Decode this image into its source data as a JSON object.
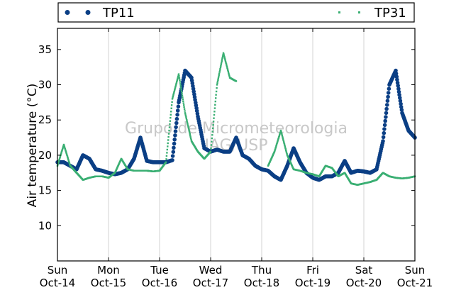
{
  "chart_data": {
    "type": "scatter",
    "ylabel": "Air temperature (°C)",
    "xlabel": "",
    "ylim": [
      5,
      38
    ],
    "xlim": [
      "2018-10-14 00:00",
      "2018-10-21 00:00"
    ],
    "y_ticks": [
      10,
      15,
      20,
      25,
      30,
      35
    ],
    "x_ticks": [
      {
        "date": "2018-10-14",
        "day": "Sun",
        "label": "Oct-14"
      },
      {
        "date": "2018-10-15",
        "day": "Mon",
        "label": "Oct-15"
      },
      {
        "date": "2018-10-16",
        "day": "Tue",
        "label": "Oct-16"
      },
      {
        "date": "2018-10-17",
        "day": "Wed",
        "label": "Oct-17"
      },
      {
        "date": "2018-10-18",
        "day": "Thu",
        "label": "Oct-18"
      },
      {
        "date": "2018-10-19",
        "day": "Fri",
        "label": "Oct-19"
      },
      {
        "date": "2018-10-20",
        "day": "Sat",
        "label": "Oct-20"
      },
      {
        "date": "2018-10-21",
        "day": "Sun",
        "label": "Oct-21"
      }
    ],
    "grid": "vertical",
    "legend_position": "top",
    "watermark": [
      "Grupo de Micrometeorologia",
      "IAG/USP"
    ],
    "series": [
      {
        "name": "TP11",
        "color": "#0b3f85",
        "marker": "circle",
        "x": [
          "2018-10-14 00:00",
          "2018-10-14 03:00",
          "2018-10-14 06:00",
          "2018-10-14 09:00",
          "2018-10-14 12:00",
          "2018-10-14 15:00",
          "2018-10-14 18:00",
          "2018-10-14 21:00",
          "2018-10-15 00:00",
          "2018-10-15 03:00",
          "2018-10-15 06:00",
          "2018-10-15 09:00",
          "2018-10-15 12:00",
          "2018-10-15 15:00",
          "2018-10-15 18:00",
          "2018-10-15 21:00",
          "2018-10-16 00:00",
          "2018-10-16 03:00",
          "2018-10-16 06:00",
          "2018-10-16 09:00",
          "2018-10-16 12:00",
          "2018-10-16 15:00",
          "2018-10-16 18:00",
          "2018-10-16 21:00",
          "2018-10-17 00:00",
          "2018-10-17 03:00",
          "2018-10-17 06:00",
          "2018-10-17 09:00",
          "2018-10-17 12:00",
          "2018-10-17 15:00",
          "2018-10-17 18:00",
          "2018-10-17 21:00",
          "2018-10-18 00:00",
          "2018-10-18 03:00",
          "2018-10-18 06:00",
          "2018-10-18 09:00",
          "2018-10-18 12:00",
          "2018-10-18 15:00",
          "2018-10-18 18:00",
          "2018-10-18 21:00",
          "2018-10-19 00:00",
          "2018-10-19 03:00",
          "2018-10-19 06:00",
          "2018-10-19 09:00",
          "2018-10-19 12:00",
          "2018-10-19 15:00",
          "2018-10-19 18:00",
          "2018-10-19 21:00",
          "2018-10-20 00:00",
          "2018-10-20 03:00",
          "2018-10-20 06:00",
          "2018-10-20 09:00",
          "2018-10-20 12:00",
          "2018-10-20 15:00",
          "2018-10-20 18:00",
          "2018-10-20 21:00",
          "2018-10-21 00:00"
        ],
        "y": [
          19.0,
          19.0,
          18.5,
          18.0,
          20.0,
          19.5,
          18.0,
          17.8,
          17.5,
          17.3,
          17.5,
          18.0,
          19.5,
          22.5,
          19.2,
          19.0,
          19.0,
          19.0,
          19.3,
          27.5,
          32.0,
          31.0,
          25.5,
          21.0,
          20.5,
          20.8,
          20.5,
          20.5,
          22.5,
          20.0,
          19.5,
          18.5,
          18.0,
          17.8,
          17.0,
          16.5,
          18.5,
          21.0,
          19.0,
          17.5,
          16.8,
          16.5,
          17.0,
          17.0,
          17.5,
          19.2,
          17.5,
          17.8,
          17.7,
          17.5,
          18.0,
          22.0,
          30.0,
          32.0,
          26.0,
          23.5,
          22.5
        ]
      },
      {
        "name": "TP31",
        "color": "#3aaf73",
        "marker": "square",
        "x": [
          "2018-10-14 00:00",
          "2018-10-14 03:00",
          "2018-10-14 06:00",
          "2018-10-14 09:00",
          "2018-10-14 12:00",
          "2018-10-14 15:00",
          "2018-10-14 18:00",
          "2018-10-14 21:00",
          "2018-10-15 00:00",
          "2018-10-15 03:00",
          "2018-10-15 06:00",
          "2018-10-15 09:00",
          "2018-10-15 12:00",
          "2018-10-15 15:00",
          "2018-10-15 18:00",
          "2018-10-15 21:00",
          "2018-10-16 00:00",
          "2018-10-16 03:00",
          "2018-10-16 06:00",
          "2018-10-16 09:00",
          "2018-10-16 12:00",
          "2018-10-16 15:00",
          "2018-10-16 18:00",
          "2018-10-16 21:00",
          "2018-10-17 00:00",
          "2018-10-17 03:00",
          "2018-10-17 06:00",
          "2018-10-17 09:00",
          "2018-10-17 12:00",
          "2018-10-17 15:00",
          "2018-10-17 18:00",
          "2018-10-17 21:00",
          "2018-10-18 00:00",
          "2018-10-18 03:00",
          "2018-10-18 06:00",
          "2018-10-18 09:00",
          "2018-10-18 12:00",
          "2018-10-18 15:00",
          "2018-10-18 18:00",
          "2018-10-18 21:00",
          "2018-10-19 00:00",
          "2018-10-19 03:00",
          "2018-10-19 06:00",
          "2018-10-19 09:00",
          "2018-10-19 12:00",
          "2018-10-19 15:00",
          "2018-10-19 18:00",
          "2018-10-19 21:00",
          "2018-10-20 00:00",
          "2018-10-20 03:00",
          "2018-10-20 06:00",
          "2018-10-20 09:00",
          "2018-10-20 12:00",
          "2018-10-20 15:00",
          "2018-10-20 18:00",
          "2018-10-20 21:00",
          "2018-10-21 00:00"
        ],
        "y": [
          18.5,
          21.5,
          18.5,
          17.5,
          16.5,
          16.8,
          17.0,
          17.0,
          16.8,
          17.5,
          19.5,
          18.0,
          17.8,
          17.8,
          17.8,
          17.7,
          17.8,
          19.0,
          28.0,
          31.5,
          26.0,
          22.0,
          20.5,
          19.5,
          20.5,
          30.0,
          34.5,
          31.0,
          30.5,
          null,
          null,
          null,
          null,
          18.5,
          20.5,
          23.5,
          20.0,
          18.0,
          17.8,
          17.5,
          17.3,
          17.0,
          18.5,
          18.2,
          17.0,
          17.5,
          16.0,
          15.8,
          16.0,
          16.2,
          16.5,
          17.5,
          17.0,
          16.8,
          16.7,
          16.8,
          17.0
        ]
      }
    ]
  }
}
